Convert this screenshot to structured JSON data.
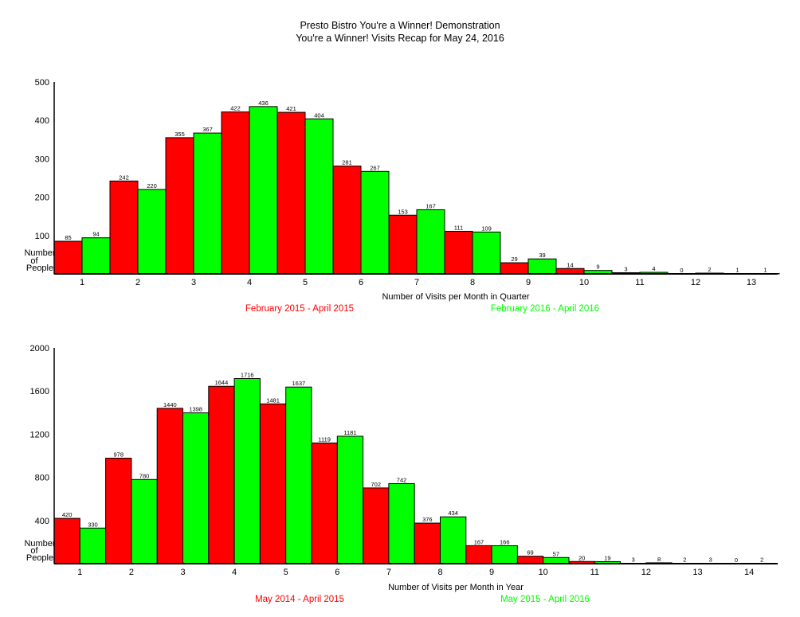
{
  "header": {
    "title": "Presto Bistro You're a Winner! Demonstration",
    "subtitle": "You're a Winner! Visits Recap for May 24, 2016"
  },
  "chart_data": [
    {
      "type": "bar",
      "xlabel": "Number of Visits per Month in Quarter",
      "ylabel": "Number of People",
      "ylim": [
        0,
        500
      ],
      "yticks": [
        100,
        200,
        300,
        400,
        500
      ],
      "categories": [
        "1",
        "2",
        "3",
        "4",
        "5",
        "6",
        "7",
        "8",
        "9",
        "10",
        "11",
        "12",
        "13"
      ],
      "series": [
        {
          "name": "February 2015 - April 2015",
          "color": "#ff0000",
          "values": [
            85,
            242,
            355,
            422,
            421,
            281,
            153,
            111,
            29,
            14,
            3,
            0,
            1
          ]
        },
        {
          "name": "February 2016 - April 2016",
          "color": "#00ff00",
          "values": [
            94,
            220,
            367,
            436,
            404,
            267,
            167,
            109,
            39,
            9,
            4,
            2,
            1
          ]
        }
      ],
      "grid": false
    },
    {
      "type": "bar",
      "xlabel": "Number of Visits per Month in Year",
      "ylabel": "Number of People",
      "ylim": [
        0,
        2000
      ],
      "yticks": [
        400,
        800,
        1200,
        1600,
        2000
      ],
      "categories": [
        "1",
        "2",
        "3",
        "4",
        "5",
        "6",
        "7",
        "8",
        "9",
        "10",
        "11",
        "12",
        "13",
        "14"
      ],
      "series": [
        {
          "name": "May 2014 - April 2015",
          "color": "#ff0000",
          "values": [
            420,
            978,
            1440,
            1644,
            1481,
            1119,
            702,
            376,
            167,
            69,
            20,
            3,
            2,
            0
          ]
        },
        {
          "name": "May 2015 - April 2016",
          "color": "#00ff00",
          "values": [
            330,
            780,
            1398,
            1716,
            1637,
            1181,
            742,
            434,
            166,
            57,
            19,
            8,
            3,
            2
          ]
        }
      ],
      "grid": false
    }
  ]
}
